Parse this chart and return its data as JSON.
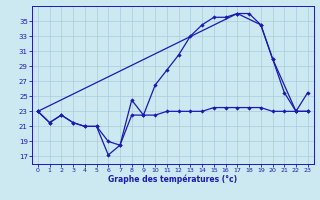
{
  "xlabel": "Graphe des températures (°c)",
  "background_color": "#cce8f0",
  "line_color": "#1a1ab4",
  "grid_color": "#aaccdd",
  "xlim": [
    -0.5,
    23.5
  ],
  "ylim": [
    16.0,
    37.0
  ],
  "yticks": [
    17,
    19,
    21,
    23,
    25,
    27,
    29,
    31,
    33,
    35
  ],
  "xticks": [
    0,
    1,
    2,
    3,
    4,
    5,
    6,
    7,
    8,
    9,
    10,
    11,
    12,
    13,
    14,
    15,
    16,
    17,
    18,
    19,
    20,
    21,
    22,
    23
  ],
  "line1_x": [
    0,
    1,
    2,
    3,
    4,
    5,
    6,
    7,
    8,
    9,
    10,
    11,
    12,
    13,
    14,
    15,
    16,
    17,
    18,
    19,
    20,
    21,
    22,
    23
  ],
  "line1_y": [
    23.0,
    21.5,
    22.5,
    21.5,
    21.0,
    21.0,
    19.0,
    18.5,
    22.5,
    22.5,
    22.5,
    23.0,
    23.0,
    23.0,
    23.0,
    23.5,
    23.5,
    23.5,
    23.5,
    23.5,
    23.0,
    23.0,
    23.0,
    23.0
  ],
  "line2_x": [
    0,
    1,
    2,
    3,
    4,
    5,
    6,
    7,
    8,
    9,
    10,
    11,
    12,
    13,
    14,
    15,
    16,
    17,
    18,
    19,
    20,
    21,
    22,
    23
  ],
  "line2_y": [
    23.0,
    21.5,
    22.5,
    21.5,
    21.0,
    21.0,
    17.2,
    18.5,
    24.5,
    22.5,
    26.5,
    28.5,
    30.5,
    33.0,
    34.5,
    35.5,
    35.5,
    36.0,
    36.0,
    34.5,
    30.0,
    25.5,
    23.0,
    23.0
  ],
  "line3_x": [
    0,
    17,
    19,
    20,
    22,
    23
  ],
  "line3_y": [
    23.0,
    36.0,
    34.5,
    30.0,
    23.0,
    25.5
  ],
  "figwidth": 3.2,
  "figheight": 2.0,
  "dpi": 100
}
